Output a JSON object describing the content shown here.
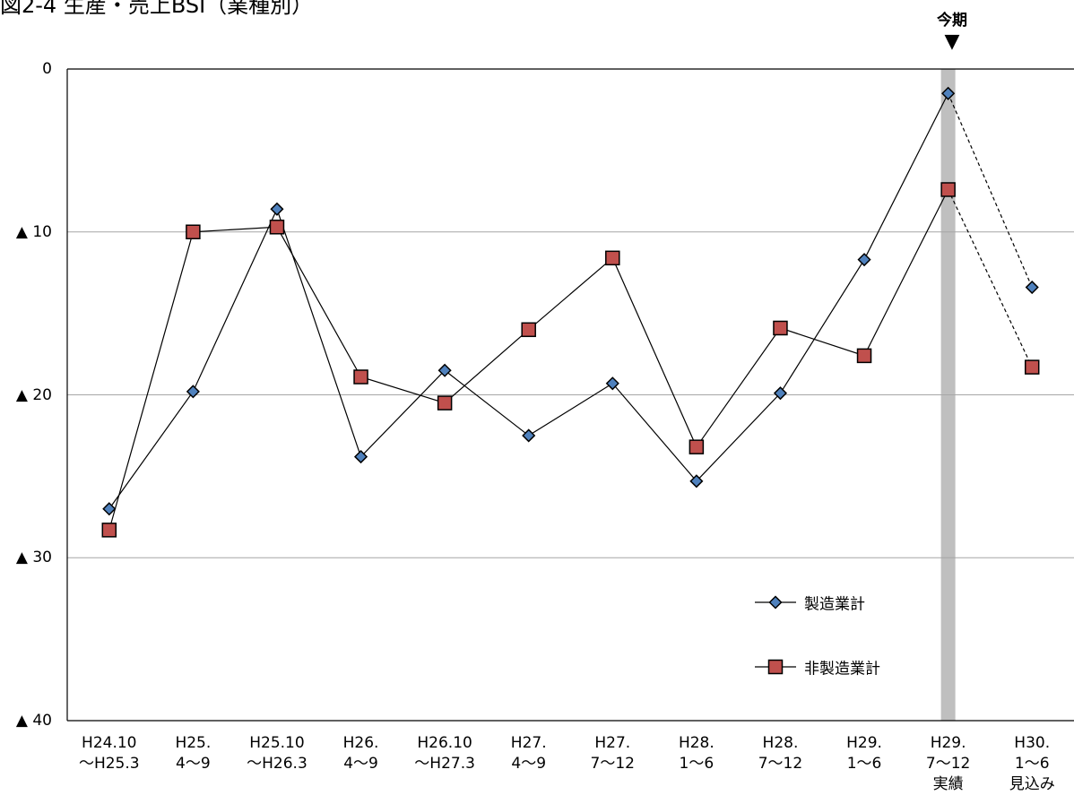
{
  "chart_data": {
    "type": "line",
    "title": "図2-4 生産・売上BSI（業種別）",
    "marker_label": "今期",
    "marker_arrow": "▼",
    "categories": [
      [
        "H24.10",
        "～H25.3"
      ],
      [
        "H25.",
        "4～9"
      ],
      [
        "H25.10",
        "～H26.3"
      ],
      [
        "H26.",
        "4～9"
      ],
      [
        "H26.10",
        "～H27.3"
      ],
      [
        "H27.",
        "4～9"
      ],
      [
        "H27.",
        "7～12"
      ],
      [
        "H28.",
        "1～6"
      ],
      [
        "H28.",
        "7～12"
      ],
      [
        "H29.",
        "1～6"
      ],
      [
        "H29.",
        "7～12",
        "実績"
      ],
      [
        "H30.",
        "1～6",
        "見込み"
      ]
    ],
    "yticks": [
      "0",
      "▲ 10",
      "▲ 20",
      "▲ 30",
      "▲ 40"
    ],
    "ylim": [
      -40,
      0
    ],
    "series": [
      {
        "name": "製造業計",
        "marker": "diamond",
        "color": "#4F81BD",
        "values": [
          -27.0,
          -19.8,
          -8.6,
          -23.8,
          -18.5,
          -22.5,
          -19.3,
          -25.3,
          -19.9,
          -11.7,
          -1.5,
          -13.4
        ]
      },
      {
        "name": "非製造業計",
        "marker": "square",
        "color": "#C0504D",
        "values": [
          -28.3,
          -10.0,
          -9.7,
          -18.9,
          -20.5,
          -16.0,
          -11.6,
          -23.2,
          -15.9,
          -17.6,
          -7.4,
          -18.3
        ]
      }
    ],
    "forecast_index": 11,
    "highlight_index": 10,
    "highlight_color": "#BFBFBF",
    "grid": true,
    "legend_position": "bottom-right"
  }
}
